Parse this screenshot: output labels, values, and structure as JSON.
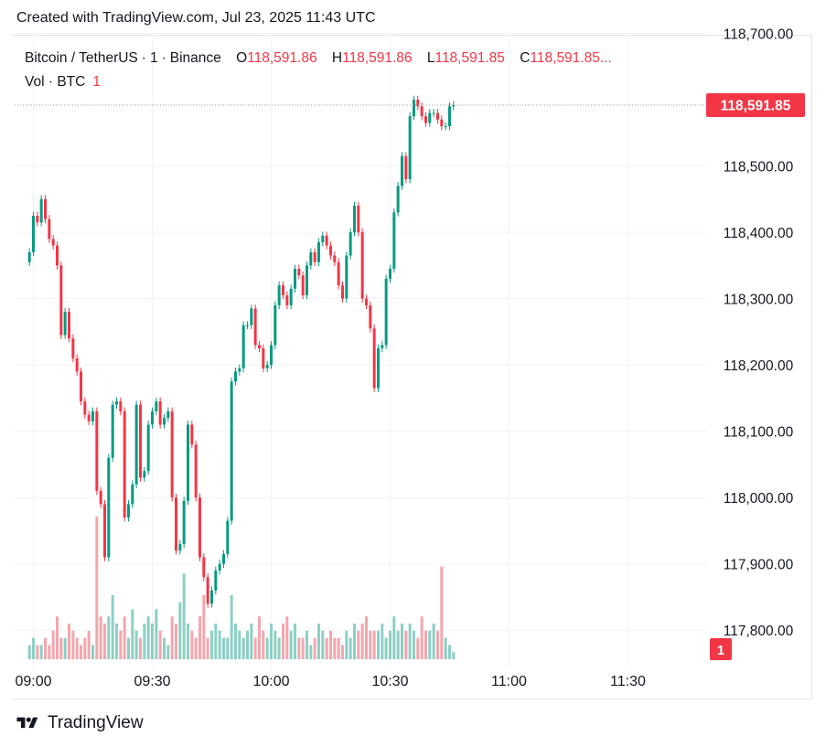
{
  "watermark": {
    "created_text": "Created with TradingView.com, Jul 23, 2025 11:43 UTC"
  },
  "legend": {
    "symbol": "Bitcoin / TetherUS",
    "interval": "1",
    "exchange": "Binance",
    "open_label": "O",
    "open": "118,591.86",
    "high_label": "H",
    "high": "118,591.86",
    "low_label": "L",
    "low": "118,591.85",
    "close_label": "C",
    "close": "118,591.85...",
    "volume_label": "Vol · BTC",
    "volume": "1"
  },
  "colors": {
    "up": "#089981",
    "down": "#f23645",
    "up_vol": "#8dcfc4",
    "down_vol": "#f4a6ad",
    "grid": "#f0f3fa",
    "text": "#131722"
  },
  "price_badge": "118,591.85",
  "volume_badge": "1",
  "brand": {
    "logo_icon": "tradingview-logo-icon",
    "name": "TradingView"
  },
  "chart_data": {
    "type": "candlestick",
    "symbol": "BTCUSDT",
    "interval_minutes": 1,
    "ylim": [
      117770,
      118720
    ],
    "y_ticks": [
      "118,700.00",
      "118,500.00",
      "118,400.00",
      "118,300.00",
      "118,200.00",
      "118,100.00",
      "118,000.00",
      "117,900.00",
      "117,800.00"
    ],
    "y_tick_values": [
      118700,
      118500,
      118400,
      118300,
      118200,
      118100,
      118000,
      117900,
      117800
    ],
    "x_ticks": [
      "09:00",
      "09:30",
      "10:00",
      "10:30",
      "11:00",
      "11:30"
    ],
    "x_tick_minutes": [
      0,
      30,
      60,
      90,
      120,
      150
    ],
    "first_minute": -1,
    "last_price": 118591.85,
    "close": [
      118370,
      118425,
      118415,
      118450,
      118420,
      118390,
      118380,
      118350,
      118245,
      118280,
      118240,
      118210,
      118190,
      118145,
      118125,
      118115,
      118130,
      118010,
      117990,
      117910,
      118060,
      118140,
      118145,
      118130,
      117970,
      117990,
      118020,
      118140,
      118030,
      118040,
      118110,
      118130,
      118145,
      118110,
      118120,
      118130,
      118000,
      117920,
      117930,
      117995,
      118110,
      118080,
      118000,
      117910,
      117880,
      117840,
      117860,
      117890,
      117900,
      117915,
      117965,
      118175,
      118190,
      118195,
      118260,
      118260,
      118285,
      118230,
      118225,
      118195,
      118200,
      118230,
      118290,
      118320,
      118305,
      118290,
      118315,
      118345,
      118335,
      118305,
      118350,
      118370,
      118355,
      118385,
      118395,
      118380,
      118365,
      118355,
      118320,
      118300,
      118365,
      118400,
      118440,
      118400,
      118300,
      118290,
      118255,
      118165,
      118225,
      118230,
      118330,
      118345,
      118430,
      118470,
      118515,
      118480,
      118575,
      118600,
      118590,
      118575,
      118565,
      118580,
      118580,
      118570,
      118560,
      118560,
      118590,
      118592
    ],
    "volume": [
      2,
      3,
      2,
      2,
      3,
      2,
      4,
      6,
      3,
      3,
      5,
      4,
      3,
      2,
      3,
      4,
      2,
      20,
      6,
      5,
      6,
      9,
      5,
      4,
      6,
      3,
      7,
      4,
      3,
      5,
      6,
      5,
      7,
      4,
      3,
      2,
      6,
      5,
      8,
      12,
      5,
      4,
      3,
      6,
      9,
      3,
      4,
      5,
      4,
      3,
      3,
      9,
      5,
      4,
      3,
      4,
      5,
      3,
      6,
      4,
      3,
      5,
      4,
      3,
      5,
      6,
      4,
      5,
      3,
      3,
      4,
      2,
      3,
      5,
      4,
      3,
      4,
      3,
      3,
      2,
      4,
      3,
      5,
      4,
      5,
      6,
      4,
      4,
      4,
      5,
      3,
      4,
      6,
      4,
      5,
      4,
      5,
      4,
      3,
      6,
      4,
      4,
      5,
      4,
      13,
      3,
      2,
      1
    ]
  }
}
